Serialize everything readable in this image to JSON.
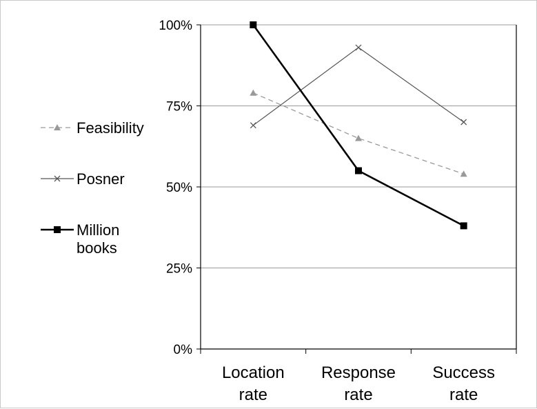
{
  "chart_data": {
    "type": "line",
    "categories": [
      [
        "Location",
        "rate"
      ],
      [
        "Response",
        "rate"
      ],
      [
        "Success",
        "rate"
      ]
    ],
    "y_ticks": [
      "0%",
      "25%",
      "50%",
      "75%",
      "100%"
    ],
    "ylim": [
      0,
      100
    ],
    "grid": true,
    "legend_position": "left",
    "series": [
      {
        "name": "Feasibility",
        "label_lines": [
          "Feasibility"
        ],
        "values": [
          79,
          65,
          54
        ],
        "color": "#999999",
        "dash": true,
        "marker": "triangle"
      },
      {
        "name": "Posner",
        "label_lines": [
          "Posner"
        ],
        "values": [
          69,
          93,
          70
        ],
        "color": "#555555",
        "dash": false,
        "marker": "x"
      },
      {
        "name": "Million books",
        "label_lines": [
          "Million",
          "books"
        ],
        "values": [
          100,
          55,
          38
        ],
        "color": "#000000",
        "dash": false,
        "marker": "square"
      }
    ]
  }
}
